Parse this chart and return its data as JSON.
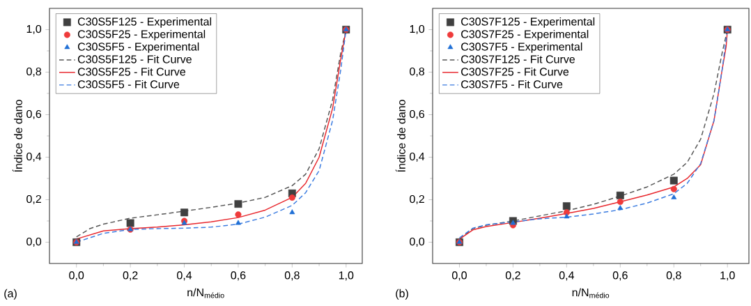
{
  "chart_data": [
    {
      "type": "scatter",
      "xlabel": "n/N$_{médio}$",
      "ylabel": "Índice de dano",
      "annotations": [
        "(a)"
      ],
      "legend": "top left",
      "grid": false,
      "xlim": [
        -0.1,
        1.06
      ],
      "ylim": [
        -0.1,
        1.1
      ],
      "xticks": [
        {
          "value": 0,
          "label": "0,0"
        },
        {
          "value": 0.2,
          "label": "0,2"
        },
        {
          "value": 0.4,
          "label": "0,4"
        },
        {
          "value": 0.6,
          "label": "0,6"
        },
        {
          "value": 0.8,
          "label": "0,8"
        },
        {
          "value": 1,
          "label": "1,0"
        }
      ],
      "yticks": [
        {
          "value": 0,
          "label": "0,0"
        },
        {
          "value": 0.2,
          "label": "0,2"
        },
        {
          "value": 0.4,
          "label": "0,4"
        },
        {
          "value": 0.6,
          "label": "0,6"
        },
        {
          "value": 0.8,
          "label": "0,8"
        },
        {
          "value": 1,
          "label": "1,0"
        }
      ],
      "series": [
        {
          "name": "C30S5F125 - Experimental",
          "marker": "square",
          "color": "#404040",
          "x": [
            0,
            0.2,
            0.4,
            0.6,
            0.8,
            1.0
          ],
          "values": [
            0.0,
            0.09,
            0.14,
            0.18,
            0.23,
            1.0
          ]
        },
        {
          "name": "C30S5F25 - Experimental",
          "marker": "circle",
          "color": "#ef3b3b",
          "x": [
            0,
            0.2,
            0.4,
            0.6,
            0.8,
            1.0
          ],
          "values": [
            0.0,
            0.06,
            0.1,
            0.13,
            0.21,
            1.0
          ]
        },
        {
          "name": "C30S5F5 - Experimental",
          "marker": "triangle",
          "color": "#1f6fd6",
          "x": [
            0,
            0.2,
            0.4,
            0.6,
            0.8,
            1.0
          ],
          "values": [
            0.0,
            0.06,
            0.09,
            0.09,
            0.14,
            1.0
          ]
        },
        {
          "name": "C30S5F125 - Fit Curve",
          "type": "line",
          "marker": "none",
          "line_style": "dashed",
          "color": "#555555",
          "x": [
            0,
            0.05,
            0.1,
            0.2,
            0.3,
            0.4,
            0.5,
            0.6,
            0.7,
            0.8,
            0.85,
            0.9,
            0.95,
            0.98,
            1.0
          ],
          "values": [
            0.025,
            0.064,
            0.085,
            0.113,
            0.129,
            0.146,
            0.164,
            0.184,
            0.211,
            0.266,
            0.32,
            0.44,
            0.67,
            0.89,
            1.0
          ]
        },
        {
          "name": "C30S5F25 - Fit Curve",
          "type": "line",
          "marker": "none",
          "line_style": "solid",
          "color": "#e8262c",
          "x": [
            0,
            0.1,
            0.2,
            0.3,
            0.4,
            0.5,
            0.6,
            0.7,
            0.8,
            0.85,
            0.9,
            0.95,
            0.98,
            1.0
          ],
          "values": [
            0.015,
            0.053,
            0.064,
            0.071,
            0.082,
            0.096,
            0.116,
            0.151,
            0.211,
            0.277,
            0.4,
            0.63,
            0.86,
            1.0
          ]
        },
        {
          "name": "C30S5F5 - Fit Curve",
          "type": "line",
          "marker": "none",
          "line_style": "dashed",
          "color": "#3a7be0",
          "x": [
            0,
            0.1,
            0.2,
            0.3,
            0.4,
            0.5,
            0.6,
            0.7,
            0.8,
            0.85,
            0.9,
            0.95,
            0.98,
            1.0
          ],
          "values": [
            0.0,
            0.042,
            0.06,
            0.064,
            0.066,
            0.071,
            0.085,
            0.118,
            0.173,
            0.233,
            0.337,
            0.573,
            0.81,
            1.0
          ]
        }
      ]
    },
    {
      "type": "scatter",
      "xlabel": "n/N$_{médio}$",
      "ylabel": "Índice de dano",
      "annotations": [
        "(b)"
      ],
      "legend": "top left",
      "grid": false,
      "xlim": [
        -0.1,
        1.08
      ],
      "ylim": [
        -0.1,
        1.1
      ],
      "xticks": [
        {
          "value": 0,
          "label": "0,0"
        },
        {
          "value": 0.2,
          "label": "0,2"
        },
        {
          "value": 0.4,
          "label": "0,4"
        },
        {
          "value": 0.6,
          "label": "0,6"
        },
        {
          "value": 0.8,
          "label": "0,8"
        },
        {
          "value": 1,
          "label": "1,0"
        }
      ],
      "yticks": [
        {
          "value": 0,
          "label": "0,0"
        },
        {
          "value": 0.2,
          "label": "0,2"
        },
        {
          "value": 0.4,
          "label": "0,4"
        },
        {
          "value": 0.6,
          "label": "0,6"
        },
        {
          "value": 0.8,
          "label": "0,8"
        },
        {
          "value": 1,
          "label": "1,0"
        }
      ],
      "series": [
        {
          "name": "C30S7F125 - Experimental",
          "marker": "square",
          "color": "#404040",
          "x": [
            0,
            0.2,
            0.4,
            0.6,
            0.8,
            1.0
          ],
          "values": [
            0.0,
            0.1,
            0.17,
            0.22,
            0.29,
            1.0
          ]
        },
        {
          "name": "C30S7F25 - Experimental",
          "marker": "circle",
          "color": "#ef3b3b",
          "x": [
            0,
            0.2,
            0.4,
            0.6,
            0.8,
            1.0
          ],
          "values": [
            0.0,
            0.08,
            0.14,
            0.19,
            0.25,
            1.0
          ]
        },
        {
          "name": "C30S7F5 - Experimental",
          "marker": "triangle",
          "color": "#1f6fd6",
          "x": [
            0,
            0.2,
            0.4,
            0.6,
            0.8,
            1.0
          ],
          "values": [
            0.0,
            0.09,
            0.12,
            0.16,
            0.21,
            1.0
          ]
        },
        {
          "name": "C30S7F125 - Fit Curve",
          "type": "line",
          "marker": "none",
          "line_style": "dashed",
          "color": "#555555",
          "x": [
            0,
            0.05,
            0.1,
            0.2,
            0.3,
            0.4,
            0.5,
            0.6,
            0.7,
            0.8,
            0.85,
            0.9,
            0.95,
            0.98,
            1.0
          ],
          "values": [
            0.014,
            0.064,
            0.08,
            0.1,
            0.124,
            0.148,
            0.178,
            0.217,
            0.26,
            0.32,
            0.376,
            0.485,
            0.7,
            0.89,
            1.0
          ]
        },
        {
          "name": "C30S7F25 - Fit Curve",
          "type": "line",
          "marker": "none",
          "line_style": "solid",
          "color": "#e8262c",
          "x": [
            0,
            0.05,
            0.1,
            0.2,
            0.3,
            0.4,
            0.5,
            0.6,
            0.7,
            0.8,
            0.85,
            0.9,
            0.95,
            0.98,
            0.995,
            1.0
          ],
          "values": [
            0.014,
            0.058,
            0.074,
            0.093,
            0.113,
            0.135,
            0.159,
            0.19,
            0.222,
            0.26,
            0.3,
            0.365,
            0.573,
            0.81,
            0.92,
            1.0
          ]
        },
        {
          "name": "C30S7F5 - Fit Curve",
          "type": "line",
          "marker": "none",
          "line_style": "dashed",
          "color": "#3a7be0",
          "x": [
            0,
            0.05,
            0.1,
            0.2,
            0.3,
            0.4,
            0.5,
            0.6,
            0.7,
            0.8,
            0.85,
            0.9,
            0.95,
            0.98,
            1.0
          ],
          "values": [
            0.02,
            0.066,
            0.082,
            0.096,
            0.11,
            0.118,
            0.133,
            0.153,
            0.184,
            0.228,
            0.277,
            0.37,
            0.573,
            0.81,
            1.0
          ]
        }
      ]
    }
  ]
}
